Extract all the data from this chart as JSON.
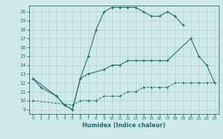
{
  "bg_color": "#cfe9e9",
  "grid_color": "#b0d0d0",
  "line_color": "#1e6b6b",
  "xlabel": "Humidex (Indice chaleur)",
  "xlim": [
    -0.5,
    23.5
  ],
  "ylim": [
    8.5,
    20.7
  ],
  "yticks": [
    9,
    10,
    11,
    12,
    13,
    14,
    15,
    16,
    17,
    18,
    19,
    20
  ],
  "xticks": [
    0,
    1,
    2,
    3,
    4,
    5,
    6,
    7,
    8,
    9,
    10,
    11,
    12,
    13,
    14,
    15,
    16,
    17,
    18,
    19,
    20,
    21,
    22,
    23
  ],
  "curve1_x": [
    0,
    1,
    3,
    4,
    5,
    6,
    7,
    8,
    9,
    10,
    11,
    12,
    13,
    14,
    15,
    16,
    17,
    18,
    19
  ],
  "curve1_y": [
    12.5,
    11.5,
    10.5,
    9.5,
    9.0,
    12.5,
    15.0,
    18.0,
    20.0,
    20.5,
    20.5,
    20.5,
    20.5,
    20.0,
    19.5,
    19.5,
    20.0,
    19.5,
    18.5
  ],
  "curve2_x": [
    0,
    3,
    4,
    5,
    6,
    7,
    9,
    10,
    11,
    12,
    13,
    14,
    15,
    16,
    17,
    20,
    21,
    22,
    23
  ],
  "curve2_y": [
    12.5,
    10.5,
    9.5,
    9.0,
    12.5,
    13.0,
    13.5,
    14.0,
    14.0,
    14.5,
    14.5,
    14.5,
    14.5,
    14.5,
    14.5,
    17.0,
    15.0,
    14.0,
    12.0
  ],
  "curve3_x": [
    0,
    5,
    6,
    7,
    8,
    9,
    10,
    11,
    12,
    13,
    14,
    15,
    16,
    17,
    18,
    19,
    20,
    21,
    22,
    23
  ],
  "curve3_y": [
    10.0,
    9.5,
    10.0,
    10.0,
    10.0,
    10.5,
    10.5,
    10.5,
    11.0,
    11.0,
    11.5,
    11.5,
    11.5,
    11.5,
    12.0,
    12.0,
    12.0,
    12.0,
    12.0,
    12.0
  ]
}
